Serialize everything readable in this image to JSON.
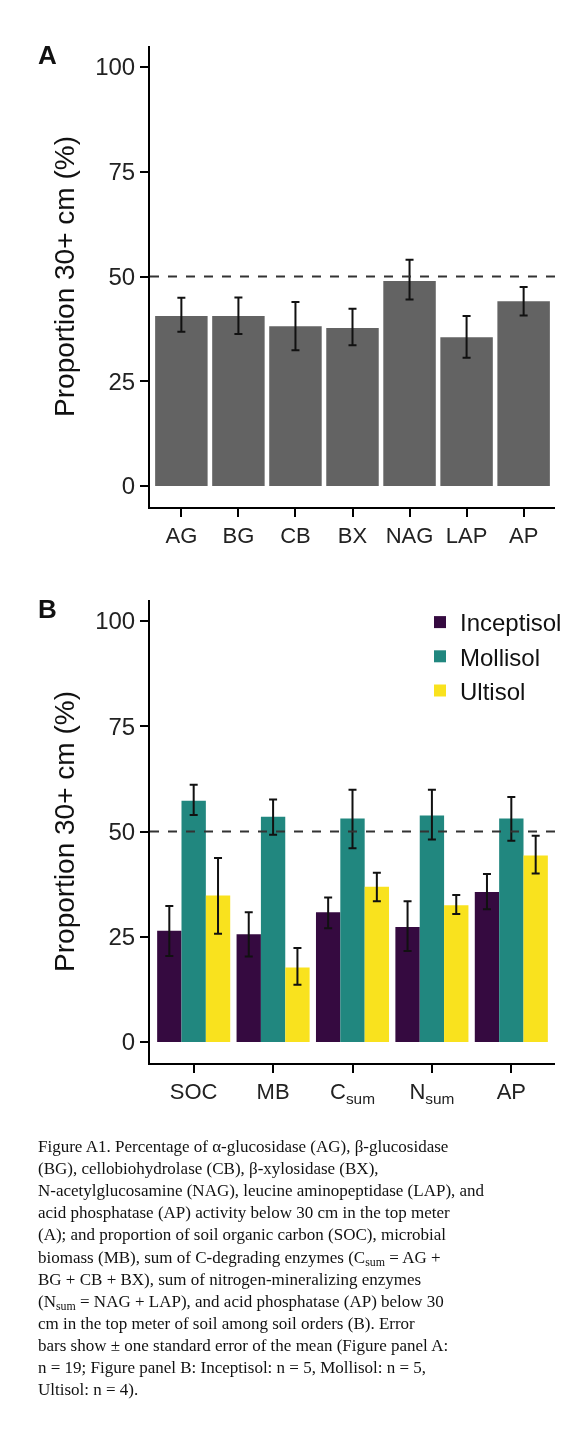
{
  "chart_data": [
    {
      "type": "bar",
      "title": "A",
      "ylabel": "Proportion 30+ cm (%)",
      "categories": [
        "AG",
        "BG",
        "CB",
        "BX",
        "NAG",
        "LAP",
        "AP"
      ],
      "values": [
        40.6,
        40.6,
        38.1,
        37.7,
        48.9,
        35.5,
        44.1
      ],
      "errors": [
        [
          36.8,
          44.9
        ],
        [
          36.3,
          45.0
        ],
        [
          32.4,
          43.9
        ],
        [
          33.6,
          42.3
        ],
        [
          44.5,
          54.0
        ],
        [
          30.6,
          40.6
        ],
        [
          40.7,
          47.5
        ]
      ],
      "color": "#636363",
      "ylim": [
        -5,
        105
      ],
      "yticks": [
        0,
        25,
        50,
        75,
        100
      ],
      "ref_lines": [
        {
          "axis": "y",
          "value": 50,
          "color": "#333333",
          "line_style": "dashed"
        }
      ]
    },
    {
      "type": "bar",
      "title": "B",
      "ylabel": "Proportion 30+ cm (%)",
      "categories": [
        "SOC",
        "MB",
        "C$_{sum}$",
        "N$_{sum}$",
        "AP"
      ],
      "series": [
        {
          "name": "Inceptisol",
          "color": "#350a40",
          "values": [
            26.4,
            25.6,
            30.8,
            27.3,
            35.6
          ],
          "errors": [
            [
              20.4,
              32.3
            ],
            [
              20.3,
              30.8
            ],
            [
              27.0,
              34.3
            ],
            [
              21.6,
              33.4
            ],
            [
              31.5,
              39.9
            ]
          ]
        },
        {
          "name": "Mollisol",
          "color": "#21877f",
          "values": [
            57.3,
            53.5,
            53.1,
            53.8,
            53.1
          ],
          "errors": [
            [
              53.9,
              61.1
            ],
            [
              49.2,
              57.6
            ],
            [
              46.0,
              59.9
            ],
            [
              48.1,
              59.9
            ],
            [
              47.8,
              58.2
            ]
          ]
        },
        {
          "name": "Ultisol",
          "color": "#f9e21e",
          "values": [
            34.8,
            17.7,
            36.9,
            32.5,
            44.3
          ],
          "errors": [
            [
              25.7,
              43.7
            ],
            [
              13.6,
              22.3
            ],
            [
              33.4,
              40.2
            ],
            [
              30.4,
              34.9
            ],
            [
              40.0,
              49.0
            ]
          ]
        }
      ],
      "ylim": [
        -5,
        105
      ],
      "yticks": [
        0,
        25,
        50,
        75,
        100
      ],
      "legend": "top right",
      "ref_lines": [
        {
          "axis": "y",
          "value": 50,
          "color": "#333333",
          "line_style": "dashed"
        }
      ],
      "annotations": [
        "Figure A1. Percentage of α-glucosidase (AG), β-glucosidase (BG), cellobiohydrolase (CB), β-xylosidase (BX), N-acetylglucosamine (NAG), leucine aminopeptidase (LAP), and acid phosphatase (AP) activity below 30 cm in the top meter (A); and proportion of soil organic carbon (SOC), microbial biomass (MB), sum of C-degrading enzymes (C$_{sum}$ = AG + BG + CB + BX), sum of nitrogen-mineralizing enzymes (N$_{sum}$ = NAG + LAP), and acid phosphatase (AP) below 30 cm in the top meter of soil among soil orders (B). Error bars show ± one standard error of the mean (Figure panel A: n = 19; Figure panel B: Inceptisol: n = 5, Mollisol: n = 5, Ultisol: n = 4)."
      ]
    }
  ]
}
